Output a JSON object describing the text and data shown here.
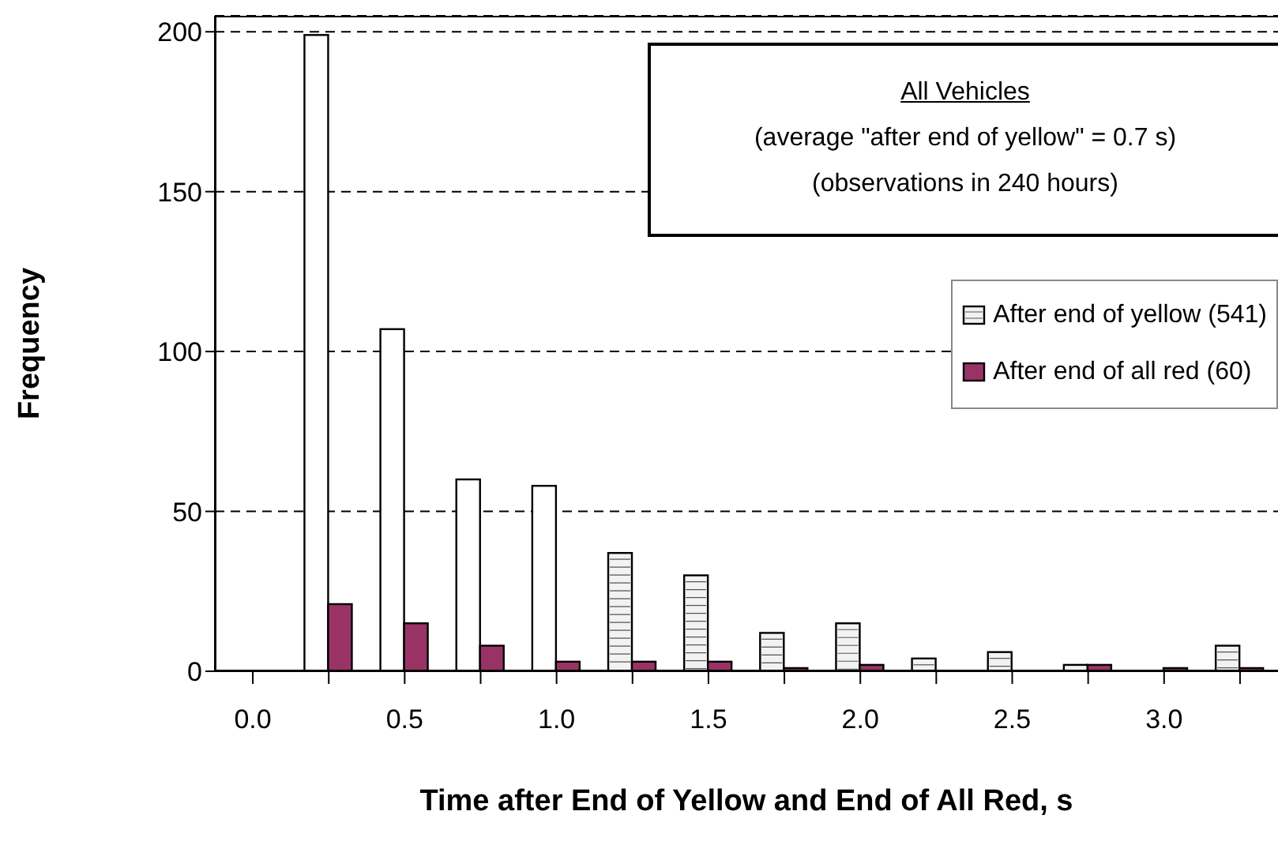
{
  "chart_data": {
    "type": "bar",
    "xlabel": "Time after End of Yellow and End of All Red, s",
    "ylabel": "Frequency",
    "annotations": [
      "All Vehicles",
      "(average \"after end of yellow\" = 0.7 s)",
      "(observations in 240 hours)"
    ],
    "categories": [
      "0.0",
      null,
      "0.5",
      null,
      "1.0",
      null,
      "1.5",
      null,
      "2.0",
      null,
      "2.5",
      null,
      "3.0",
      null
    ],
    "series": [
      {
        "name": "After end of yellow (541)",
        "color": "#f2f2f2",
        "colors": [
          "#ffffff",
          "#ffffff",
          "#ffffff",
          "#ffffff",
          "#ffffff",
          "#f2f2f2",
          "#f2f2f2",
          "#f2f2f2",
          "#f2f2f2",
          "#f2f2f2",
          "#f2f2f2",
          "#f2f2f2",
          "#f2f2f2",
          "#f2f2f2"
        ],
        "values": [
          0,
          199,
          107,
          60,
          58,
          37,
          30,
          12,
          15,
          4,
          6,
          2,
          0,
          8
        ]
      },
      {
        "name": "After end of all red (60)",
        "color": "#993366",
        "values": [
          0,
          21,
          15,
          8,
          3,
          3,
          3,
          1,
          2,
          0,
          0,
          2,
          1,
          1
        ]
      }
    ],
    "ylim": [
      0,
      205
    ],
    "yticks": [
      0,
      50,
      100,
      150,
      200
    ],
    "grid": "y",
    "legend": "right"
  }
}
